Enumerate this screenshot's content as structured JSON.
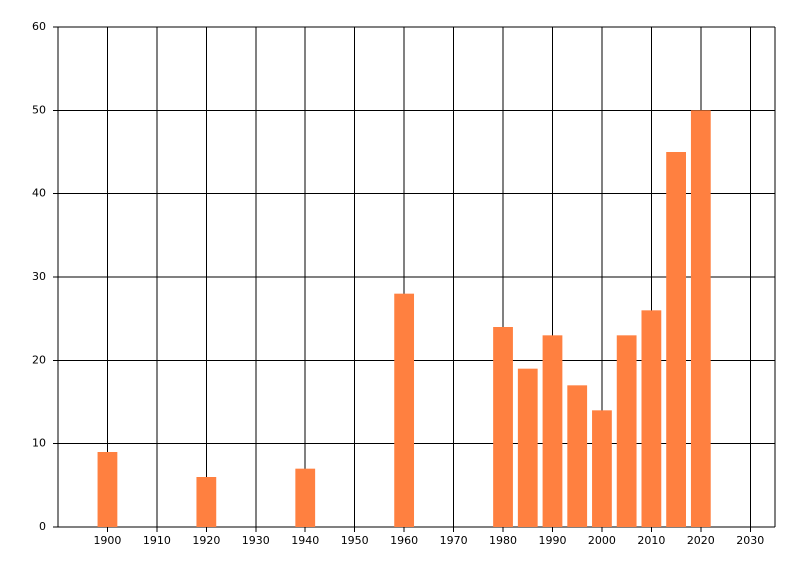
{
  "chart_data": {
    "type": "bar",
    "x": [
      1900,
      1920,
      1940,
      1960,
      1980,
      1985,
      1990,
      1995,
      2000,
      2005,
      2010,
      2015,
      2020
    ],
    "values": [
      9,
      6,
      7,
      28,
      24,
      19,
      23,
      17,
      14,
      23,
      26,
      45,
      50
    ],
    "color": "#ff8040",
    "xlim": [
      1890,
      2035
    ],
    "xticks": [
      1900,
      1910,
      1920,
      1930,
      1940,
      1950,
      1960,
      1970,
      1980,
      1990,
      2000,
      2010,
      2020,
      2030
    ],
    "ylim": [
      0,
      60
    ],
    "yticks": [
      0,
      10,
      20,
      30,
      40,
      50,
      60
    ],
    "grid": true
  }
}
